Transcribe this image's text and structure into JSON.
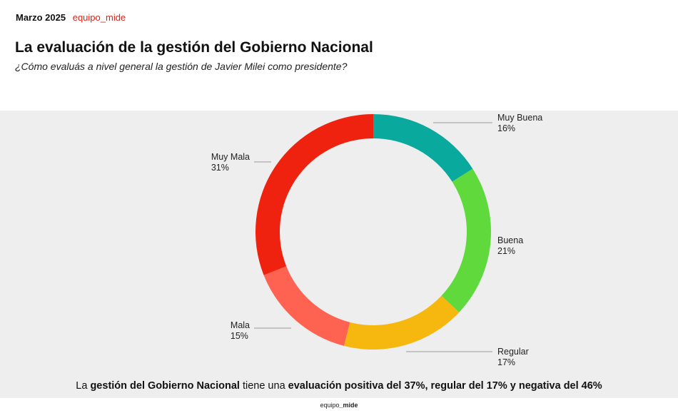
{
  "header": {
    "date": "Marzo 2025",
    "brand": "equipo_mide"
  },
  "title": "La evaluación de la gestión del Gobierno Nacional",
  "subtitle": "¿Cómo evaluás a nivel general la gestión de Javier Milei como presidente?",
  "chart_data": {
    "type": "pie",
    "variant": "donut",
    "slices": [
      {
        "label": "Muy Buena",
        "value": 16,
        "value_label": "16%",
        "color": "#0aa99d"
      },
      {
        "label": "Buena",
        "value": 21,
        "value_label": "21%",
        "color": "#5fd93c"
      },
      {
        "label": "Regular",
        "value": 17,
        "value_label": "17%",
        "color": "#f6b80f"
      },
      {
        "label": "Mala",
        "value": 15,
        "value_label": "15%",
        "color": "#fe6351"
      },
      {
        "label": "Muy Mala",
        "value": 31,
        "value_label": "31%",
        "color": "#ee220f"
      }
    ],
    "leader_color": "#9a9a9a"
  },
  "summary": {
    "p1": "La ",
    "b1": "gestión del Gobierno Nacional",
    "p2": " tiene una ",
    "b2": "evaluación positiva del 37%, regular del 17% y negativa del 46%"
  },
  "footer": {
    "part1": "equipo",
    "part2": "_mide"
  }
}
